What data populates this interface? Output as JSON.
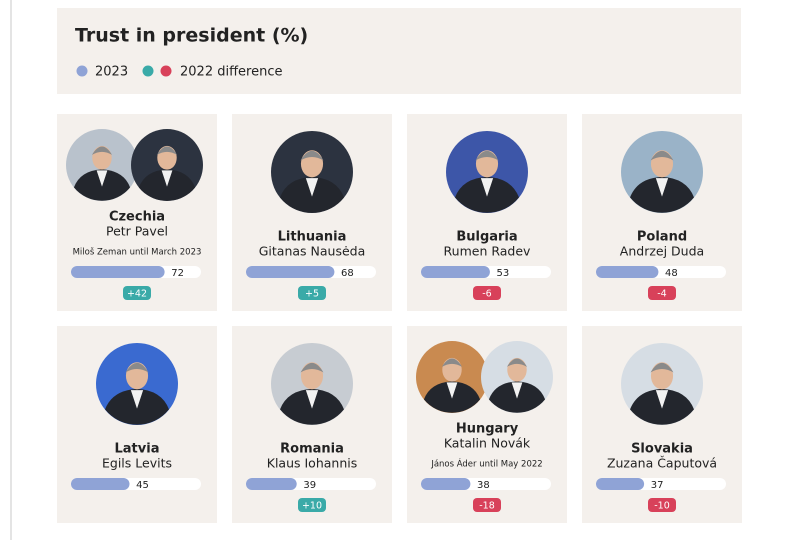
{
  "chart_data": {
    "type": "bar",
    "title": "Trust in president (%)",
    "categories": [
      "Czechia",
      "Lithuania",
      "Bulgaria",
      "Poland",
      "Latvia",
      "Romania",
      "Hungary",
      "Slovakia"
    ],
    "presidents": [
      "Petr Pavel",
      "Gitanas Nausėda",
      "Rumen Radev",
      "Andrzej Duda",
      "Egils Levits",
      "Klaus Iohannis",
      "Katalin Novák",
      "Zuzana Čaputová"
    ],
    "notes": [
      "Miloš Zeman until March 2023",
      null,
      null,
      null,
      null,
      null,
      "János Áder until May 2022",
      null
    ],
    "xlim": [
      0,
      100
    ],
    "series": [
      {
        "name": "2023",
        "color": "#8fa3d6",
        "values": [
          72,
          68,
          53,
          48,
          45,
          39,
          38,
          37
        ]
      },
      {
        "name": "2022 difference",
        "positive_color": "#3aaaa8",
        "negative_color": "#d8415a",
        "values": [
          42,
          5,
          -6,
          -4,
          null,
          10,
          -18,
          -10
        ],
        "value_labels": [
          "+42",
          "+5",
          "-6",
          "-4",
          null,
          "+10",
          "-18",
          "-10"
        ]
      }
    ]
  }
}
